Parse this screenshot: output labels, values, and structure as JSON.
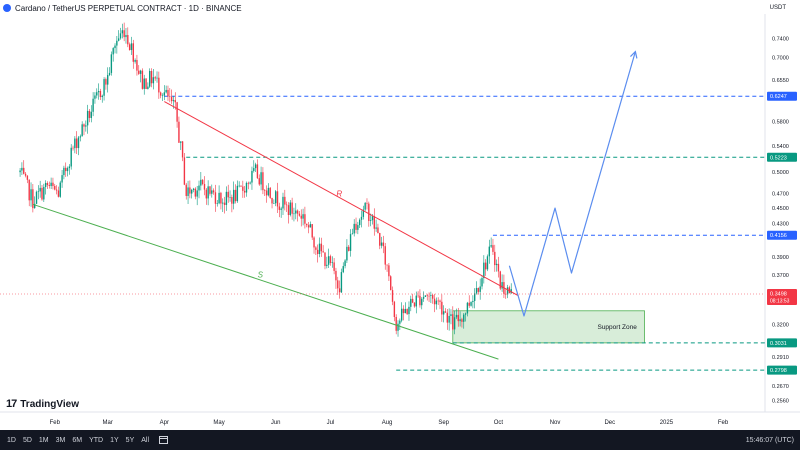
{
  "header": {
    "title": "Cardano / TetherUS PERPETUAL CONTRACT · 1D · BINANCE",
    "currency": "USDT"
  },
  "brand": {
    "logo_glyph": "17",
    "name": "TradingView"
  },
  "footer": {
    "ranges": [
      "1D",
      "5D",
      "1M",
      "3M",
      "6M",
      "YTD",
      "1Y",
      "5Y",
      "All"
    ],
    "clock": "15:46:07 (UTC)"
  },
  "chart_data": {
    "type": "candlestick",
    "price_axis": {
      "scale": "log",
      "ticks": [
        0.74,
        0.7,
        0.655,
        0.58,
        0.54,
        0.5,
        0.47,
        0.45,
        0.43,
        0.39,
        0.37,
        0.35,
        0.32,
        0.291,
        0.267,
        0.256
      ],
      "tick_labels": [
        "0.7400",
        "0.7000",
        "0.6550",
        "0.5800",
        "0.5400",
        "0.5000",
        "0.4700",
        "0.4500",
        "0.4300",
        "0.3900",
        "0.3700",
        "0.3500",
        "0.3200",
        "0.2910",
        "0.2670",
        "0.2560"
      ]
    },
    "time_axis": {
      "labels": [
        "Feb",
        "Mar",
        "Apr",
        "May",
        "Jun",
        "Jul",
        "Aug",
        "Sep",
        "Oct",
        "Nov",
        "Dec",
        "2025",
        "Feb"
      ],
      "label_dates": [
        "2024-02-01",
        "2024-03-01",
        "2024-04-01",
        "2024-05-01",
        "2024-06-01",
        "2024-07-01",
        "2024-08-01",
        "2024-09-01",
        "2024-10-01",
        "2024-11-01",
        "2024-12-01",
        "2025-01-01",
        "2025-02-01"
      ]
    },
    "price_path": [
      [
        "2024-01-13",
        0.5
      ],
      [
        "2024-01-20",
        0.46
      ],
      [
        "2024-01-28",
        0.48
      ],
      [
        "2024-02-03",
        0.47
      ],
      [
        "2024-02-10",
        0.53
      ],
      [
        "2024-02-18",
        0.58
      ],
      [
        "2024-02-24",
        0.62
      ],
      [
        "2024-03-01",
        0.66
      ],
      [
        "2024-03-05",
        0.73
      ],
      [
        "2024-03-10",
        0.76
      ],
      [
        "2024-03-14",
        0.72
      ],
      [
        "2024-03-20",
        0.65
      ],
      [
        "2024-03-26",
        0.66
      ],
      [
        "2024-04-01",
        0.63
      ],
      [
        "2024-04-07",
        0.6
      ],
      [
        "2024-04-13",
        0.47
      ],
      [
        "2024-04-20",
        0.48
      ],
      [
        "2024-04-27",
        0.47
      ],
      [
        "2024-05-04",
        0.46
      ],
      [
        "2024-05-12",
        0.47
      ],
      [
        "2024-05-21",
        0.5
      ],
      [
        "2024-05-29",
        0.47
      ],
      [
        "2024-06-07",
        0.45
      ],
      [
        "2024-06-16",
        0.44
      ],
      [
        "2024-06-24",
        0.4
      ],
      [
        "2024-07-01",
        0.38
      ],
      [
        "2024-07-06",
        0.36
      ],
      [
        "2024-07-14",
        0.43
      ],
      [
        "2024-07-21",
        0.45
      ],
      [
        "2024-07-28",
        0.41
      ],
      [
        "2024-08-02",
        0.37
      ],
      [
        "2024-08-06",
        0.32
      ],
      [
        "2024-08-14",
        0.34
      ],
      [
        "2024-08-22",
        0.35
      ],
      [
        "2024-08-30",
        0.34
      ],
      [
        "2024-09-06",
        0.32
      ],
      [
        "2024-09-12",
        0.33
      ],
      [
        "2024-09-20",
        0.36
      ],
      [
        "2024-09-25",
        0.39
      ],
      [
        "2024-09-28",
        0.4
      ],
      [
        "2024-10-02",
        0.36
      ],
      [
        "2024-10-08",
        0.35
      ]
    ],
    "horizontal_levels": [
      {
        "price": 0.6247,
        "label": "0.6247",
        "color": "#2962ff"
      },
      {
        "price": 0.5223,
        "label": "0.5223",
        "color": "#089981"
      },
      {
        "price": 0.4156,
        "label": "0.4156",
        "color": "#2962ff"
      },
      {
        "price": 0.3031,
        "label": "0.3031",
        "color": "#089981"
      },
      {
        "price": 0.2798,
        "label": "0.2798",
        "color": "#089981"
      }
    ],
    "current_price": {
      "price": 0.3498,
      "label": "0.3498",
      "countdown": "08:13:53",
      "color": "#f23645"
    },
    "resistance_line": {
      "label": "R",
      "color": "#f23645",
      "from": [
        "2024-04-01",
        0.615
      ],
      "to": [
        "2024-10-12",
        0.348
      ]
    },
    "support_line": {
      "label": "S",
      "color": "#4caf50",
      "from": [
        "2024-01-20",
        0.455
      ],
      "to": [
        "2024-10-01",
        0.289
      ]
    },
    "support_zone": {
      "label": "Support Zone",
      "color": "#4caf50",
      "from_date": "2024-09-06",
      "to_date": "2024-12-20",
      "low": 0.3031,
      "high": 0.333
    },
    "projection": {
      "color": "#5b8def",
      "points": [
        [
          "2024-10-07",
          0.38
        ],
        [
          "2024-10-15",
          0.328
        ],
        [
          "2024-11-01",
          0.45
        ],
        [
          "2024-11-10",
          0.372
        ],
        [
          "2024-12-15",
          0.712
        ]
      ]
    }
  }
}
